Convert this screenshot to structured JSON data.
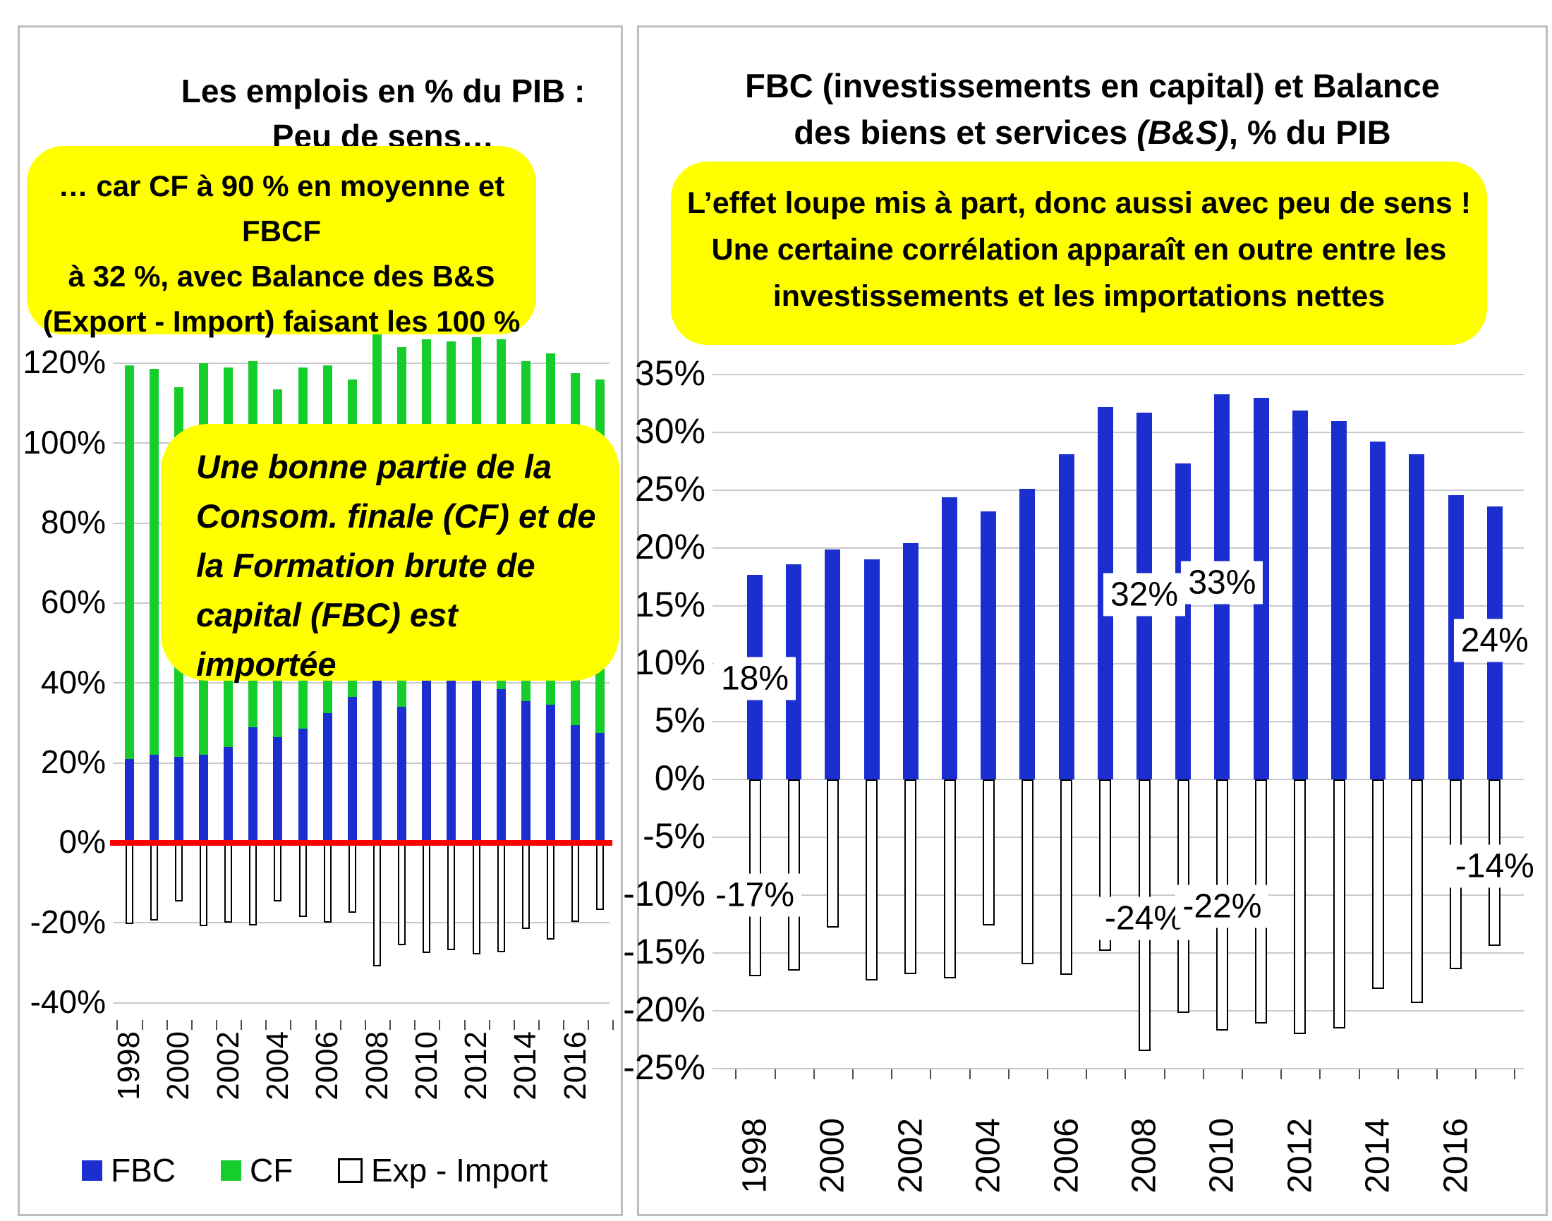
{
  "left_chart": {
    "title_lines": [
      "Les emplois en % du PIB :",
      "Peu de sens…"
    ],
    "note_top_lines": [
      "… car CF à 90 % en moyenne et FBCF",
      "à 32 %, avec Balance des B&S",
      "(Export  - Import) faisant les  100 %"
    ],
    "note_inner_lines": [
      "Une bonne partie de la",
      "Consom. finale (CF) et de",
      "la Formation brute de",
      "capital (FBC) est importée"
    ],
    "legend": [
      {
        "label": "FBC",
        "swatch": "fill-blue"
      },
      {
        "label": "CF",
        "swatch": "fill-green"
      },
      {
        "label": "Exp - Import",
        "swatch": "outline-white"
      }
    ]
  },
  "right_chart": {
    "title_line1": "FBC (investissements en capital) et Balance",
    "title_line2_pre": "des biens et services ",
    "title_line2_italic": "(B&S)",
    "title_line2_post": ", % du PIB",
    "note_lines": [
      "L’effet loupe mis à part, donc aussi avec peu de sens !",
      "Une certaine corrélation apparaît en outre entre   les",
      "investissements et les importations nettes"
    ]
  },
  "colors": {
    "fbc_blue": "#1b2fd0",
    "cf_green": "#15cd2b",
    "zero_line_red": "#ff0000",
    "note_yellow": "#ffff00",
    "gridline_gray": "#c9c9c9",
    "bar_outline_black": "#000000",
    "panel_border_gray": "#bdbdbd"
  },
  "chart_data": [
    {
      "type": "bar",
      "stacked": true,
      "title": "Les emplois en % du PIB : Peu de sens…",
      "xlabel": "",
      "ylabel": "% du PIB",
      "categories": [
        1998,
        1999,
        2000,
        2001,
        2002,
        2003,
        2004,
        2005,
        2006,
        2007,
        2008,
        2009,
        2010,
        2011,
        2012,
        2013,
        2014,
        2015,
        2016,
        2017
      ],
      "x_axis_labels": [
        1998,
        2000,
        2002,
        2004,
        2006,
        2008,
        2010,
        2012,
        2014,
        2016
      ],
      "series": [
        {
          "name": "FBC",
          "color_key": "fbc_blue",
          "values": [
            21,
            22,
            21.5,
            22,
            24,
            29,
            26.5,
            28.5,
            32.5,
            36.5,
            41,
            34,
            42,
            41.5,
            41,
            38.5,
            35.5,
            34.5,
            29.5,
            27.5
          ]
        },
        {
          "name": "CF",
          "color_key": "cf_green",
          "values": [
            98.5,
            96.5,
            92.5,
            98,
            95,
            91.5,
            87,
            90.5,
            87,
            79.5,
            88.5,
            90,
            84,
            84,
            85.5,
            87.5,
            85,
            88,
            88,
            88.5
          ]
        },
        {
          "name": "Exp - Import",
          "outline": true,
          "values": [
            -20.3,
            -19.4,
            -14.7,
            -20.9,
            -20,
            -20.6,
            -14.7,
            -18.5,
            -20,
            -17.4,
            -30.9,
            -25.6,
            -27.6,
            -26.8,
            -27.9,
            -27.4,
            -21.5,
            -24.1,
            -19.7,
            -16.8
          ]
        }
      ],
      "yticks": [
        120,
        100,
        80,
        60,
        40,
        20,
        0,
        -20,
        -40
      ],
      "ylim": [
        -44,
        133
      ],
      "ytick_format": "percent",
      "grid": true,
      "zero_line_red": true,
      "legend_position": "bottom"
    },
    {
      "type": "bar",
      "stacked": false,
      "title": "FBC (investissements en capital) et Balance des biens et services (B&S), % du PIB",
      "xlabel": "",
      "ylabel": "% du PIB",
      "categories": [
        1998,
        1999,
        2000,
        2001,
        2002,
        2003,
        2004,
        2005,
        2006,
        2007,
        2008,
        2009,
        2010,
        2011,
        2012,
        2013,
        2014,
        2015,
        2016,
        2017
      ],
      "x_axis_labels": [
        1998,
        2000,
        2002,
        2004,
        2006,
        2008,
        2010,
        2012,
        2014,
        2016
      ],
      "series": [
        {
          "name": "FBC",
          "color_key": "fbc_blue",
          "values": [
            17.7,
            18.6,
            19.9,
            19,
            20.4,
            24.4,
            23.2,
            25.1,
            28.1,
            32.2,
            31.7,
            27.3,
            33.3,
            33,
            31.9,
            31,
            29.2,
            28.1,
            24.6,
            23.6
          ]
        },
        {
          "name": "Balance des biens et services (Exp - Import)",
          "outline": true,
          "values": [
            -17,
            -16.5,
            -12.8,
            -17.4,
            -16.8,
            -17.2,
            -12.6,
            -16,
            -16.9,
            -14.8,
            -23.5,
            -20.2,
            -21.7,
            -21.1,
            -22,
            -21.5,
            -18.1,
            -19.3,
            -16.4,
            -14.4
          ]
        }
      ],
      "yticks": [
        35,
        30,
        25,
        20,
        15,
        10,
        5,
        0,
        -5,
        -10,
        -15,
        -20,
        -25
      ],
      "ylim": [
        -27,
        36
      ],
      "ytick_format": "percent",
      "grid": true,
      "zero_line_red": false,
      "legend_position": "none",
      "data_labels": [
        {
          "index": 0,
          "text": "18%",
          "y_pct": 8.7
        },
        {
          "index": 10,
          "text": "32%",
          "y_pct": 16
        },
        {
          "index": 12,
          "text": "33%",
          "y_pct": 17
        },
        {
          "index": 19,
          "text": "24%",
          "y_pct": 12
        },
        {
          "index": 0,
          "text": "-17%",
          "y_pct": -10
        },
        {
          "index": 10,
          "text": "-24%",
          "y_pct": -12
        },
        {
          "index": 12,
          "text": "-22%",
          "y_pct": -11
        },
        {
          "index": 19,
          "text": "-14%",
          "y_pct": -7.5
        }
      ]
    }
  ]
}
